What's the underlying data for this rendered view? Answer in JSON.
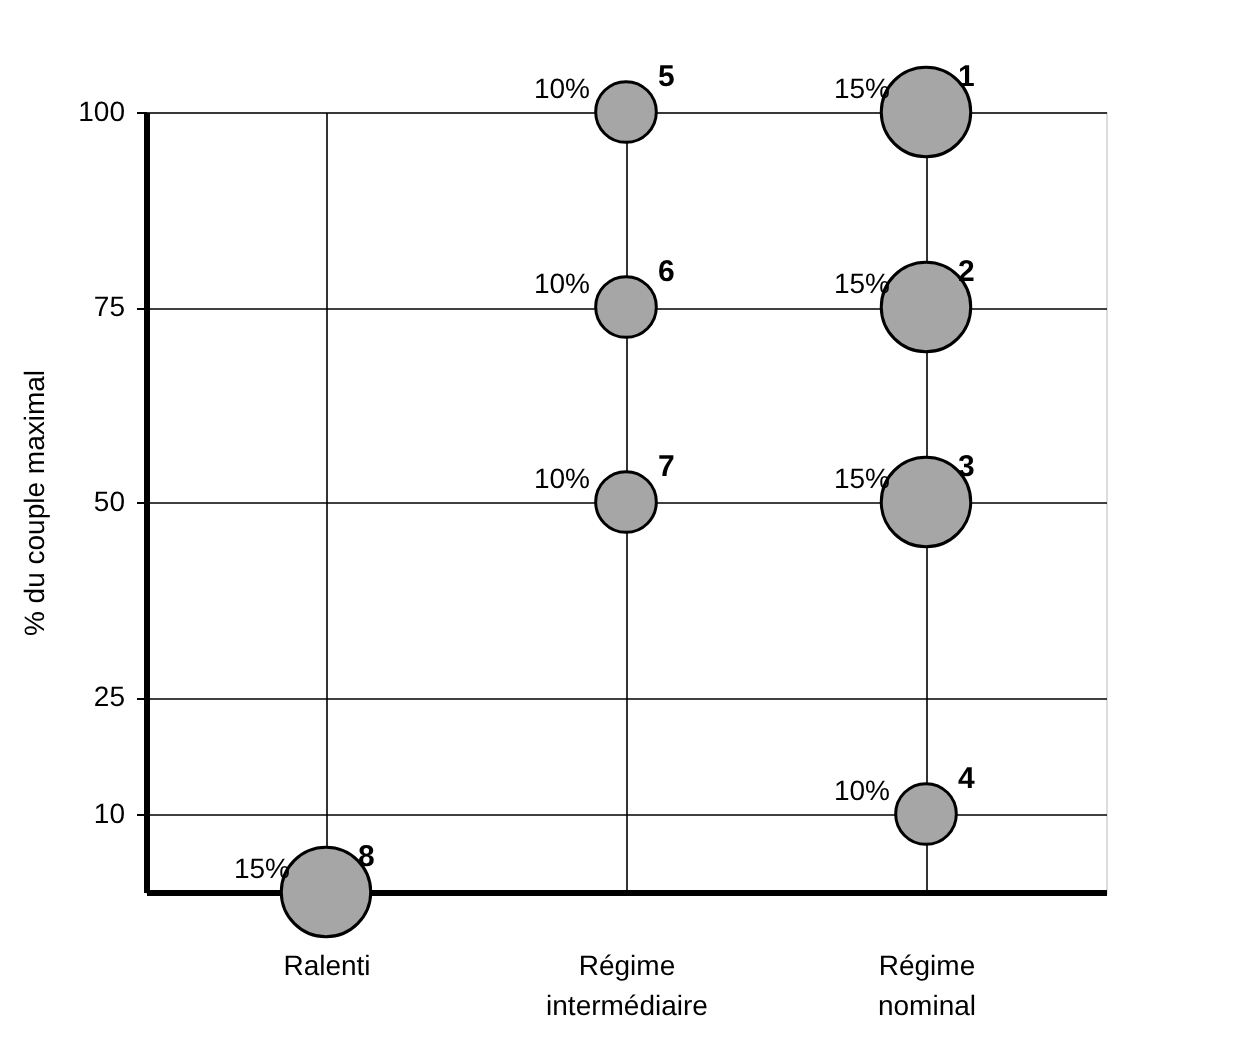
{
  "chart_data": {
    "type": "bubble",
    "ylabel": "% du couple maximal",
    "categories": [
      "Ralenti",
      "Régime intermédiaire",
      "Régime nominal"
    ],
    "ylim": [
      0,
      100
    ],
    "yticks": [
      10,
      25,
      50,
      75,
      100
    ],
    "grid": true,
    "series": [
      {
        "color": "#a6a6a6",
        "x": [
          "Régime nominal",
          "Régime nominal",
          "Régime nominal",
          "Régime nominal",
          "Régime intermédiaire",
          "Régime intermédiaire",
          "Régime intermédiaire",
          "Ralenti"
        ],
        "values": [
          100,
          75,
          50,
          10,
          100,
          75,
          50,
          0
        ],
        "sizes": [
          1,
          1,
          1,
          0.46,
          0.46,
          0.46,
          0.46,
          1
        ]
      }
    ],
    "annotations": [
      "15%",
      "1",
      "15%",
      "2",
      "15%",
      "3",
      "10%",
      "4",
      "10%",
      "5",
      "10%",
      "6",
      "10%",
      "7",
      "15%",
      "8"
    ]
  }
}
